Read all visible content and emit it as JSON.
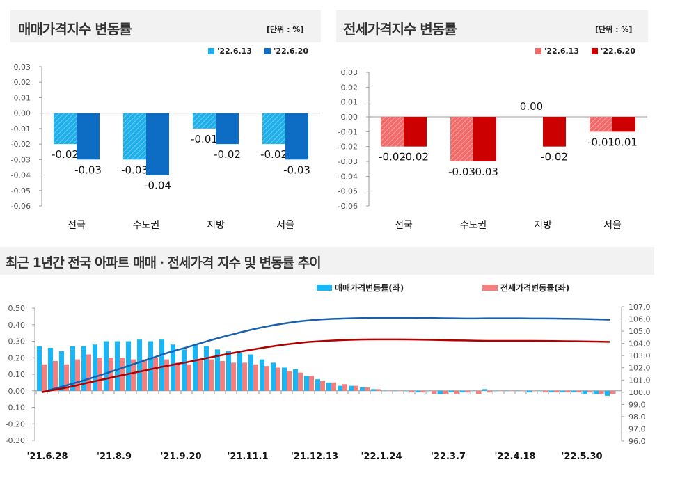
{
  "chart_data": [
    {
      "type": "bar",
      "title": "매매가격지수 변동률",
      "unit": "[단위 : %]",
      "categories": [
        "전국",
        "수도권",
        "지방",
        "서울"
      ],
      "ylim": [
        -0.06,
        0.03
      ],
      "yticks": [
        "0.03",
        "0.02",
        "0.01",
        "0.00",
        "-0.01",
        "-0.02",
        "-0.03",
        "-0.04",
        "-0.05",
        "-0.06"
      ],
      "series": [
        {
          "name": "'22.6.13",
          "values": [
            -0.02,
            -0.03,
            -0.01,
            -0.02
          ],
          "color": "#1fb0ea"
        },
        {
          "name": "'22.6.20",
          "values": [
            -0.03,
            -0.04,
            -0.02,
            -0.03
          ],
          "color": "#0d6cc4"
        }
      ],
      "legend": "top-right",
      "grid": false
    },
    {
      "type": "bar",
      "title": "전세가격지수 변동률",
      "unit": "[단위 : %]",
      "categories": [
        "전국",
        "수도권",
        "지방",
        "서울"
      ],
      "ylim": [
        -0.06,
        0.03
      ],
      "yticks": [
        "0.03",
        "0.02",
        "0.01",
        "0.00",
        "-0.01",
        "-0.02",
        "-0.03",
        "-0.04",
        "-0.05",
        "-0.06"
      ],
      "series": [
        {
          "name": "'22.6.13",
          "values": [
            -0.02,
            -0.03,
            0.0,
            -0.01
          ],
          "color": "#f26b6b"
        },
        {
          "name": "'22.6.20",
          "values": [
            -0.02,
            -0.03,
            -0.02,
            -0.01
          ],
          "color": "#cc0000"
        }
      ],
      "legend": "top-right",
      "grid": false
    },
    {
      "type": "bar+line",
      "title": "최근 1년간 전국 아파트 매매ㆍ전세가격 지수 및 변동률 추이",
      "xticks": [
        "'21.6.28",
        "'21.8.9",
        "'21.9.20",
        "'21.11.1",
        "'21.12.13",
        "'22.1.24",
        "'22.3.7",
        "'22.4.18",
        "'22.5.30"
      ],
      "ylim_left": [
        -0.3,
        0.5
      ],
      "yticks_left": [
        "0.50",
        "0.40",
        "0.30",
        "0.20",
        "0.10",
        "0.00",
        "-0.10",
        "-0.20",
        "-0.30"
      ],
      "ylim_right": [
        96,
        107
      ],
      "yticks_right": [
        "107.0",
        "106.0",
        "105.0",
        "104.0",
        "103.0",
        "102.0",
        "101.0",
        "100.0",
        "99.0",
        "98.0",
        "97.0",
        "96.0"
      ],
      "series": [
        {
          "name": "매매가격변동률(좌)",
          "type": "bar",
          "axis": "left",
          "color": "#18b6f4",
          "values": [
            0.27,
            0.26,
            0.24,
            0.27,
            0.27,
            0.28,
            0.3,
            0.3,
            0.3,
            0.31,
            0.3,
            0.31,
            0.28,
            0.25,
            0.28,
            0.27,
            0.25,
            0.24,
            0.23,
            0.22,
            0.19,
            0.17,
            0.14,
            0.13,
            0.09,
            0.07,
            0.05,
            0.03,
            0.03,
            0.02,
            0.01,
            0.0,
            0.0,
            0.0,
            -0.01,
            0.0,
            -0.02,
            -0.01,
            -0.01,
            0.0,
            0.01,
            0.0,
            0.0,
            0.0,
            -0.01,
            0.0,
            -0.01,
            -0.01,
            -0.01,
            -0.02,
            -0.02,
            -0.03
          ]
        },
        {
          "name": "전세가격변동률(좌)",
          "type": "bar",
          "axis": "left",
          "color": "#f47f7f",
          "values": [
            0.16,
            0.18,
            0.16,
            0.19,
            0.22,
            0.2,
            0.2,
            0.2,
            0.19,
            0.19,
            0.2,
            0.19,
            0.17,
            0.16,
            0.19,
            0.19,
            0.18,
            0.17,
            0.17,
            0.16,
            0.15,
            0.14,
            0.12,
            0.11,
            0.09,
            0.06,
            0.05,
            0.04,
            0.03,
            0.02,
            0.01,
            0.0,
            0.0,
            -0.01,
            -0.01,
            -0.02,
            -0.02,
            -0.02,
            -0.01,
            -0.02,
            -0.01,
            0.0,
            0.0,
            0.0,
            0.0,
            -0.01,
            -0.01,
            -0.01,
            -0.01,
            -0.01,
            -0.02,
            -0.02
          ]
        },
        {
          "type": "line",
          "axis": "right",
          "color": "#1a5fae",
          "values": [
            100.0,
            100.26,
            100.5,
            100.77,
            101.04,
            101.32,
            101.62,
            101.92,
            102.22,
            102.53,
            102.83,
            103.14,
            103.42,
            103.67,
            103.95,
            104.22,
            104.47,
            104.71,
            104.94,
            105.16,
            105.35,
            105.52,
            105.66,
            105.79,
            105.88,
            105.95,
            106.0,
            106.03,
            106.06,
            106.08,
            106.09,
            106.09,
            106.09,
            106.09,
            106.08,
            106.08,
            106.06,
            106.05,
            106.04,
            106.04,
            106.05,
            106.05,
            106.05,
            106.05,
            106.04,
            106.04,
            106.03,
            106.02,
            106.01,
            105.99,
            105.97,
            105.94
          ]
        },
        {
          "type": "line",
          "axis": "right",
          "color": "#b00000",
          "values": [
            100.0,
            100.18,
            100.34,
            100.53,
            100.75,
            100.95,
            101.15,
            101.35,
            101.54,
            101.73,
            101.93,
            102.12,
            102.29,
            102.45,
            102.64,
            102.83,
            103.01,
            103.18,
            103.35,
            103.51,
            103.66,
            103.8,
            103.92,
            104.03,
            104.12,
            104.18,
            104.23,
            104.27,
            104.3,
            104.32,
            104.33,
            104.33,
            104.33,
            104.32,
            104.31,
            104.29,
            104.27,
            104.25,
            104.24,
            104.22,
            104.21,
            104.21,
            104.21,
            104.21,
            104.21,
            104.2,
            104.19,
            104.18,
            104.17,
            104.16,
            104.14,
            104.12
          ]
        }
      ],
      "legend": "top",
      "grid": false
    }
  ]
}
